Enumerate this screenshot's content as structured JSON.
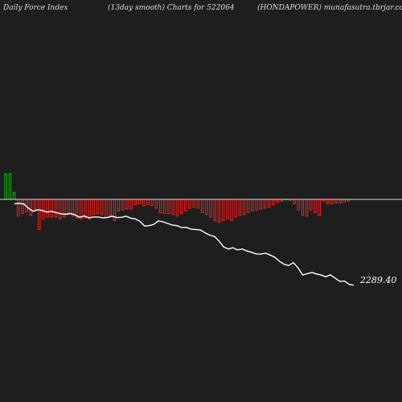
{
  "header": {
    "left": "Daily Force  Index",
    "center": "(13day smooth) Charts for 522064",
    "right": "(HONDAPOWER) munafasutra.tbrjar.com"
  },
  "chart_data": {
    "type": "bar",
    "series": [
      {
        "name": "force_index",
        "values": [
          0.29,
          0.29,
          0.08,
          -0.19,
          -0.16,
          -0.14,
          -0.18,
          -0.11,
          -0.34,
          -0.22,
          -0.2,
          -0.2,
          -0.2,
          -0.22,
          -0.2,
          -0.17,
          -0.19,
          -0.21,
          -0.22,
          -0.21,
          -0.22,
          -0.17,
          -0.16,
          -0.17,
          -0.2,
          -0.18,
          -0.24,
          -0.13,
          -0.12,
          -0.11,
          -0.11,
          -0.06,
          -0.05,
          -0.07,
          -0.06,
          -0.07,
          -0.1,
          -0.15,
          -0.16,
          -0.16,
          -0.17,
          -0.19,
          -0.16,
          -0.13,
          -0.1,
          -0.09,
          -0.1,
          -0.15,
          -0.17,
          -0.2,
          -0.24,
          -0.26,
          -0.24,
          -0.22,
          -0.24,
          -0.2,
          -0.18,
          -0.17,
          -0.15,
          -0.13,
          -0.12,
          -0.11,
          -0.1,
          -0.09,
          -0.06,
          -0.03,
          -0.02,
          0.0,
          -0.01,
          -0.05,
          -0.12,
          -0.18,
          -0.19,
          -0.12,
          -0.15,
          -0.18,
          -0.02,
          -0.05,
          -0.05,
          -0.04,
          -0.04,
          -0.03,
          -0.02
        ],
        "color_pos": "#00cc00",
        "color_neg": "#ff2020"
      },
      {
        "name": "price",
        "values": [
          2590,
          2591,
          2589,
          2574,
          2562,
          2568,
          2565,
          2559,
          2562,
          2557,
          2553,
          2551,
          2554,
          2549,
          2540,
          2545,
          2538,
          2541,
          2541,
          2538,
          2539,
          2544,
          2539,
          2540,
          2544,
          2537,
          2534,
          2525,
          2508,
          2509,
          2514,
          2527,
          2523,
          2517,
          2511,
          2509,
          2502,
          2503,
          2496,
          2495,
          2493,
          2483,
          2474,
          2470,
          2453,
          2431,
          2423,
          2428,
          2420,
          2423,
          2416,
          2411,
          2405,
          2404,
          2408,
          2401,
          2393,
          2378,
          2367,
          2362,
          2373,
          2354,
          2327,
          2332,
          2337,
          2331,
          2327,
          2321,
          2328,
          2316,
          2304,
          2305,
          2293,
          2289.4
        ],
        "color": "#ffffff"
      }
    ],
    "last_price_label": "2289.40",
    "zero_line_color": "#dcdcdc",
    "grid": false
  }
}
